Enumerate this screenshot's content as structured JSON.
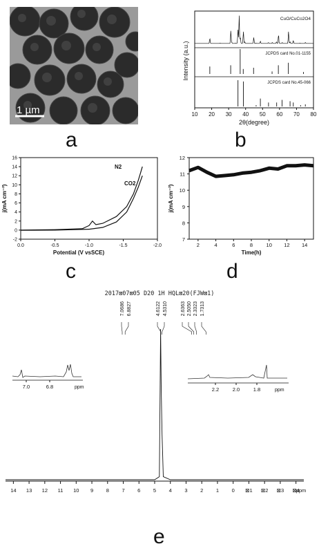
{
  "figure": {
    "panel_labels": [
      "a",
      "b",
      "c",
      "d",
      "e"
    ]
  },
  "panel_a": {
    "scale_bar_label": "1 µm"
  },
  "chart_data": [
    {
      "id": "b",
      "type": "line",
      "xlabel": "2θ(degree)",
      "ylabel": "Intensity (a.u.)",
      "xlim": [
        10,
        80
      ],
      "xticks": [
        10,
        20,
        30,
        40,
        50,
        60,
        70,
        80
      ],
      "series": [
        {
          "name": "CuO/CuCo2O4",
          "x": [
            10,
            18.9,
            19.5,
            25,
            31.3,
            31.9,
            34,
            35.5,
            36.2,
            36.9,
            38.7,
            39.5,
            44.8,
            46,
            48.7,
            53.4,
            55.7,
            58.2,
            59.4,
            61.6,
            65.3,
            66.2,
            68.1,
            72,
            75.2,
            80
          ],
          "y": [
            0.05,
            0.22,
            0.05,
            0.06,
            0.48,
            0.08,
            0.06,
            0.5,
            1.0,
            0.25,
            0.45,
            0.1,
            0.25,
            0.06,
            0.12,
            0.08,
            0.08,
            0.1,
            0.35,
            0.08,
            0.45,
            0.1,
            0.15,
            0.06,
            0.08,
            0.05
          ]
        },
        {
          "name": "JCPDS card No.01-1155",
          "x": [
            18.9,
            31.2,
            36.8,
            38.6,
            44.7,
            55.6,
            59.3,
            65.2,
            74.1
          ],
          "y": [
            0.3,
            0.35,
            1.0,
            0.2,
            0.25,
            0.1,
            0.35,
            0.45,
            0.08
          ]
        },
        {
          "name": "JCPDS card No.45-066",
          "x": [
            35.5,
            38.7,
            46.2,
            48.7,
            53.5,
            58.3,
            61.5,
            66.2,
            68.1,
            72.4,
            75.2
          ],
          "y": [
            1.0,
            0.95,
            0.05,
            0.3,
            0.15,
            0.15,
            0.25,
            0.2,
            0.15,
            0.05,
            0.08
          ]
        }
      ]
    },
    {
      "id": "c",
      "type": "line",
      "xlabel": "Potential (V vsSCE)",
      "ylabel": "j(mA cm⁻²)",
      "xlim": [
        0.0,
        -2.0
      ],
      "ylim": [
        -2,
        16
      ],
      "xticks": [
        "0.0",
        "-0.5",
        "-1.0",
        "-1.5",
        "-2.0"
      ],
      "yticks": [
        -2,
        0,
        2,
        4,
        6,
        8,
        10,
        12,
        14,
        16
      ],
      "series": [
        {
          "name": "N2",
          "x": [
            0.0,
            -0.5,
            -0.9,
            -1.0,
            -1.05,
            -1.1,
            -1.2,
            -1.4,
            -1.55,
            -1.65,
            -1.72,
            -1.75,
            -1.78
          ],
          "y": [
            0.0,
            0.1,
            0.3,
            1.0,
            2.0,
            1.2,
            1.5,
            3.0,
            5.2,
            8.0,
            11.0,
            12.5,
            14.0
          ]
        },
        {
          "name": "CO2",
          "x": [
            0.0,
            -0.5,
            -1.0,
            -1.2,
            -1.4,
            -1.55,
            -1.65,
            -1.72,
            -1.78
          ],
          "y": [
            -0.05,
            0.0,
            0.2,
            0.6,
            1.8,
            4.0,
            7.0,
            9.5,
            12.0
          ]
        }
      ]
    },
    {
      "id": "d",
      "type": "line",
      "xlabel": "Time(h)",
      "ylabel": "j(mA cm⁻²)",
      "xlim": [
        1,
        15
      ],
      "ylim": [
        7,
        12
      ],
      "xticks": [
        2,
        4,
        6,
        8,
        10,
        12,
        14
      ],
      "yticks": [
        7,
        8,
        9,
        10,
        11,
        12
      ],
      "series": [
        {
          "name": "",
          "x": [
            1,
            2,
            3,
            4,
            5,
            6,
            7,
            8,
            9,
            10,
            11,
            12,
            13,
            14,
            15
          ],
          "y": [
            11.2,
            11.4,
            11.1,
            10.85,
            10.9,
            10.95,
            11.05,
            11.1,
            11.2,
            11.35,
            11.3,
            11.5,
            11.5,
            11.55,
            11.5
          ]
        }
      ]
    },
    {
      "id": "e",
      "type": "line",
      "header": "2017⊠07⊠05 D20 1H HQL⊠20(FJW⊠1)",
      "xlabel_unit": "ppm",
      "xlim": [
        14.5,
        -4.5
      ],
      "xticks": [
        "14",
        "13",
        "12",
        "11",
        "10",
        "9",
        "8",
        "7",
        "6",
        "5",
        "4",
        "3",
        "2",
        "1",
        "0",
        "⊠1",
        "⊠2",
        "⊠3",
        "⊠4"
      ],
      "peak_labels": [
        "7.0686",
        "6.8827",
        "4.6122",
        "4.5310",
        "2.6363",
        "2.5050",
        "2.3323",
        "1.7313"
      ],
      "series": [
        {
          "name": "",
          "x": [
            14.5,
            5.0,
            4.7,
            4.62,
            4.58,
            4.53,
            4.45,
            4.0,
            -4.5
          ],
          "y": [
            0.0,
            0.0,
            0.02,
            1.0,
            0.6,
            0.3,
            0.02,
            0.0,
            0.0
          ]
        }
      ],
      "inset_left": {
        "xticks": [
          "7.0",
          "6.8"
        ],
        "unit": "ppm"
      },
      "inset_right": {
        "xticks": [
          "2.2",
          "2.0",
          "1.8"
        ],
        "unit": "ppm"
      }
    }
  ]
}
